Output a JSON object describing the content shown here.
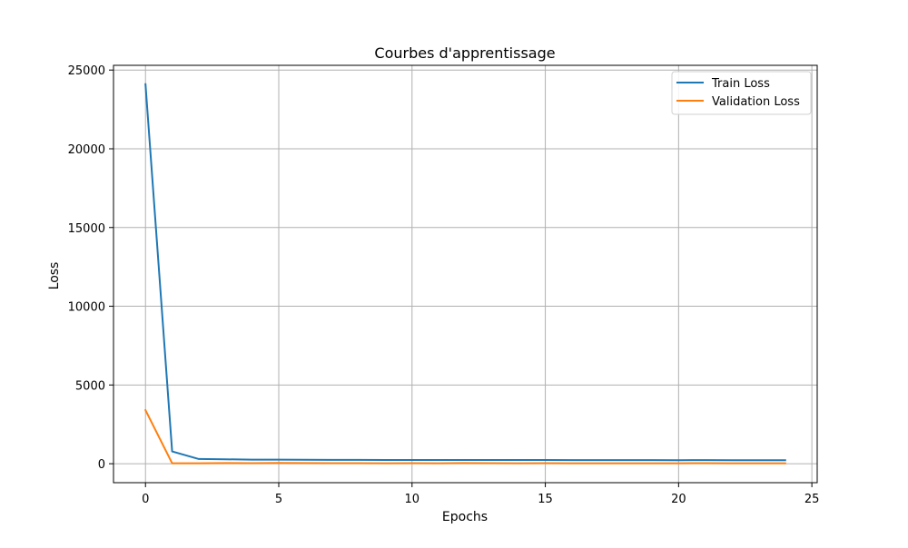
{
  "chart_data": {
    "type": "line",
    "title": "Courbes d'apprentissage",
    "xlabel": "Epochs",
    "ylabel": "Loss",
    "xlim": [
      -1.2,
      25.2
    ],
    "ylim": [
      -1204,
      25300
    ],
    "xticks": [
      0,
      5,
      10,
      15,
      20,
      25
    ],
    "xtick_labels": [
      "0",
      "5",
      "10",
      "15",
      "20",
      "25"
    ],
    "yticks": [
      0,
      5000,
      10000,
      15000,
      20000,
      25000
    ],
    "ytick_labels": [
      "0",
      "5000",
      "10000",
      "15000",
      "20000",
      "25000"
    ],
    "grid": true,
    "legend_position": "top-right",
    "x": [
      0,
      1,
      2,
      3,
      4,
      5,
      6,
      7,
      8,
      9,
      10,
      11,
      12,
      13,
      14,
      15,
      16,
      17,
      18,
      19,
      20,
      21,
      22,
      23,
      24
    ],
    "series": [
      {
        "name": "Train Loss",
        "color": "#1f77b4",
        "values": [
          24100,
          780,
          300,
          280,
          260,
          260,
          250,
          245,
          245,
          240,
          240,
          235,
          240,
          235,
          235,
          235,
          230,
          230,
          230,
          228,
          225,
          230,
          220,
          225,
          225
        ]
      },
      {
        "name": "Validation Loss",
        "color": "#ff7f0e",
        "values": [
          3400,
          30,
          30,
          40,
          35,
          50,
          40,
          35,
          35,
          30,
          35,
          30,
          45,
          35,
          30,
          35,
          30,
          30,
          30,
          30,
          30,
          35,
          30,
          30,
          30
        ]
      }
    ]
  }
}
